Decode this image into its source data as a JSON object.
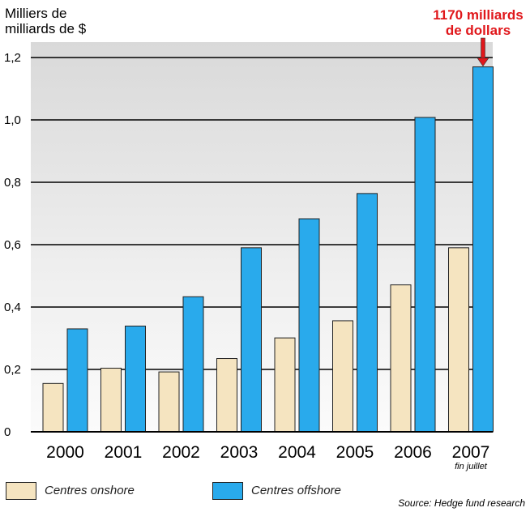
{
  "chart_data": {
    "type": "bar",
    "ylabel_lines": [
      "Milliers de",
      "milliards de $"
    ],
    "categories": [
      "2000",
      "2001",
      "2002",
      "2003",
      "2004",
      "2005",
      "2006",
      "2007"
    ],
    "category_notes": {
      "2007": "fin juillet"
    },
    "series": [
      {
        "name": "Centres onshore",
        "color": "#f5e4c0",
        "values": [
          0.155,
          0.204,
          0.192,
          0.235,
          0.301,
          0.356,
          0.471,
          0.59
        ]
      },
      {
        "name": "Centres offshore",
        "color": "#29aaec",
        "values": [
          0.33,
          0.339,
          0.433,
          0.59,
          0.683,
          0.764,
          1.008,
          1.17
        ]
      }
    ],
    "ylim": [
      0,
      1.2
    ],
    "yticks": [
      0,
      0.2,
      0.4,
      0.6,
      0.8,
      1.0,
      1.2
    ],
    "ytick_labels": [
      "0",
      "0,2",
      "0,4",
      "0,6",
      "0,8",
      "1,0",
      "1,2"
    ],
    "grid": true,
    "legend_position": "bottom-left",
    "annotation": {
      "lines": [
        "1170 milliards",
        "de dollars"
      ],
      "category": "2007",
      "series": "Centres offshore",
      "color": "#e0171b"
    },
    "source": "Source: Hedge fund research"
  }
}
